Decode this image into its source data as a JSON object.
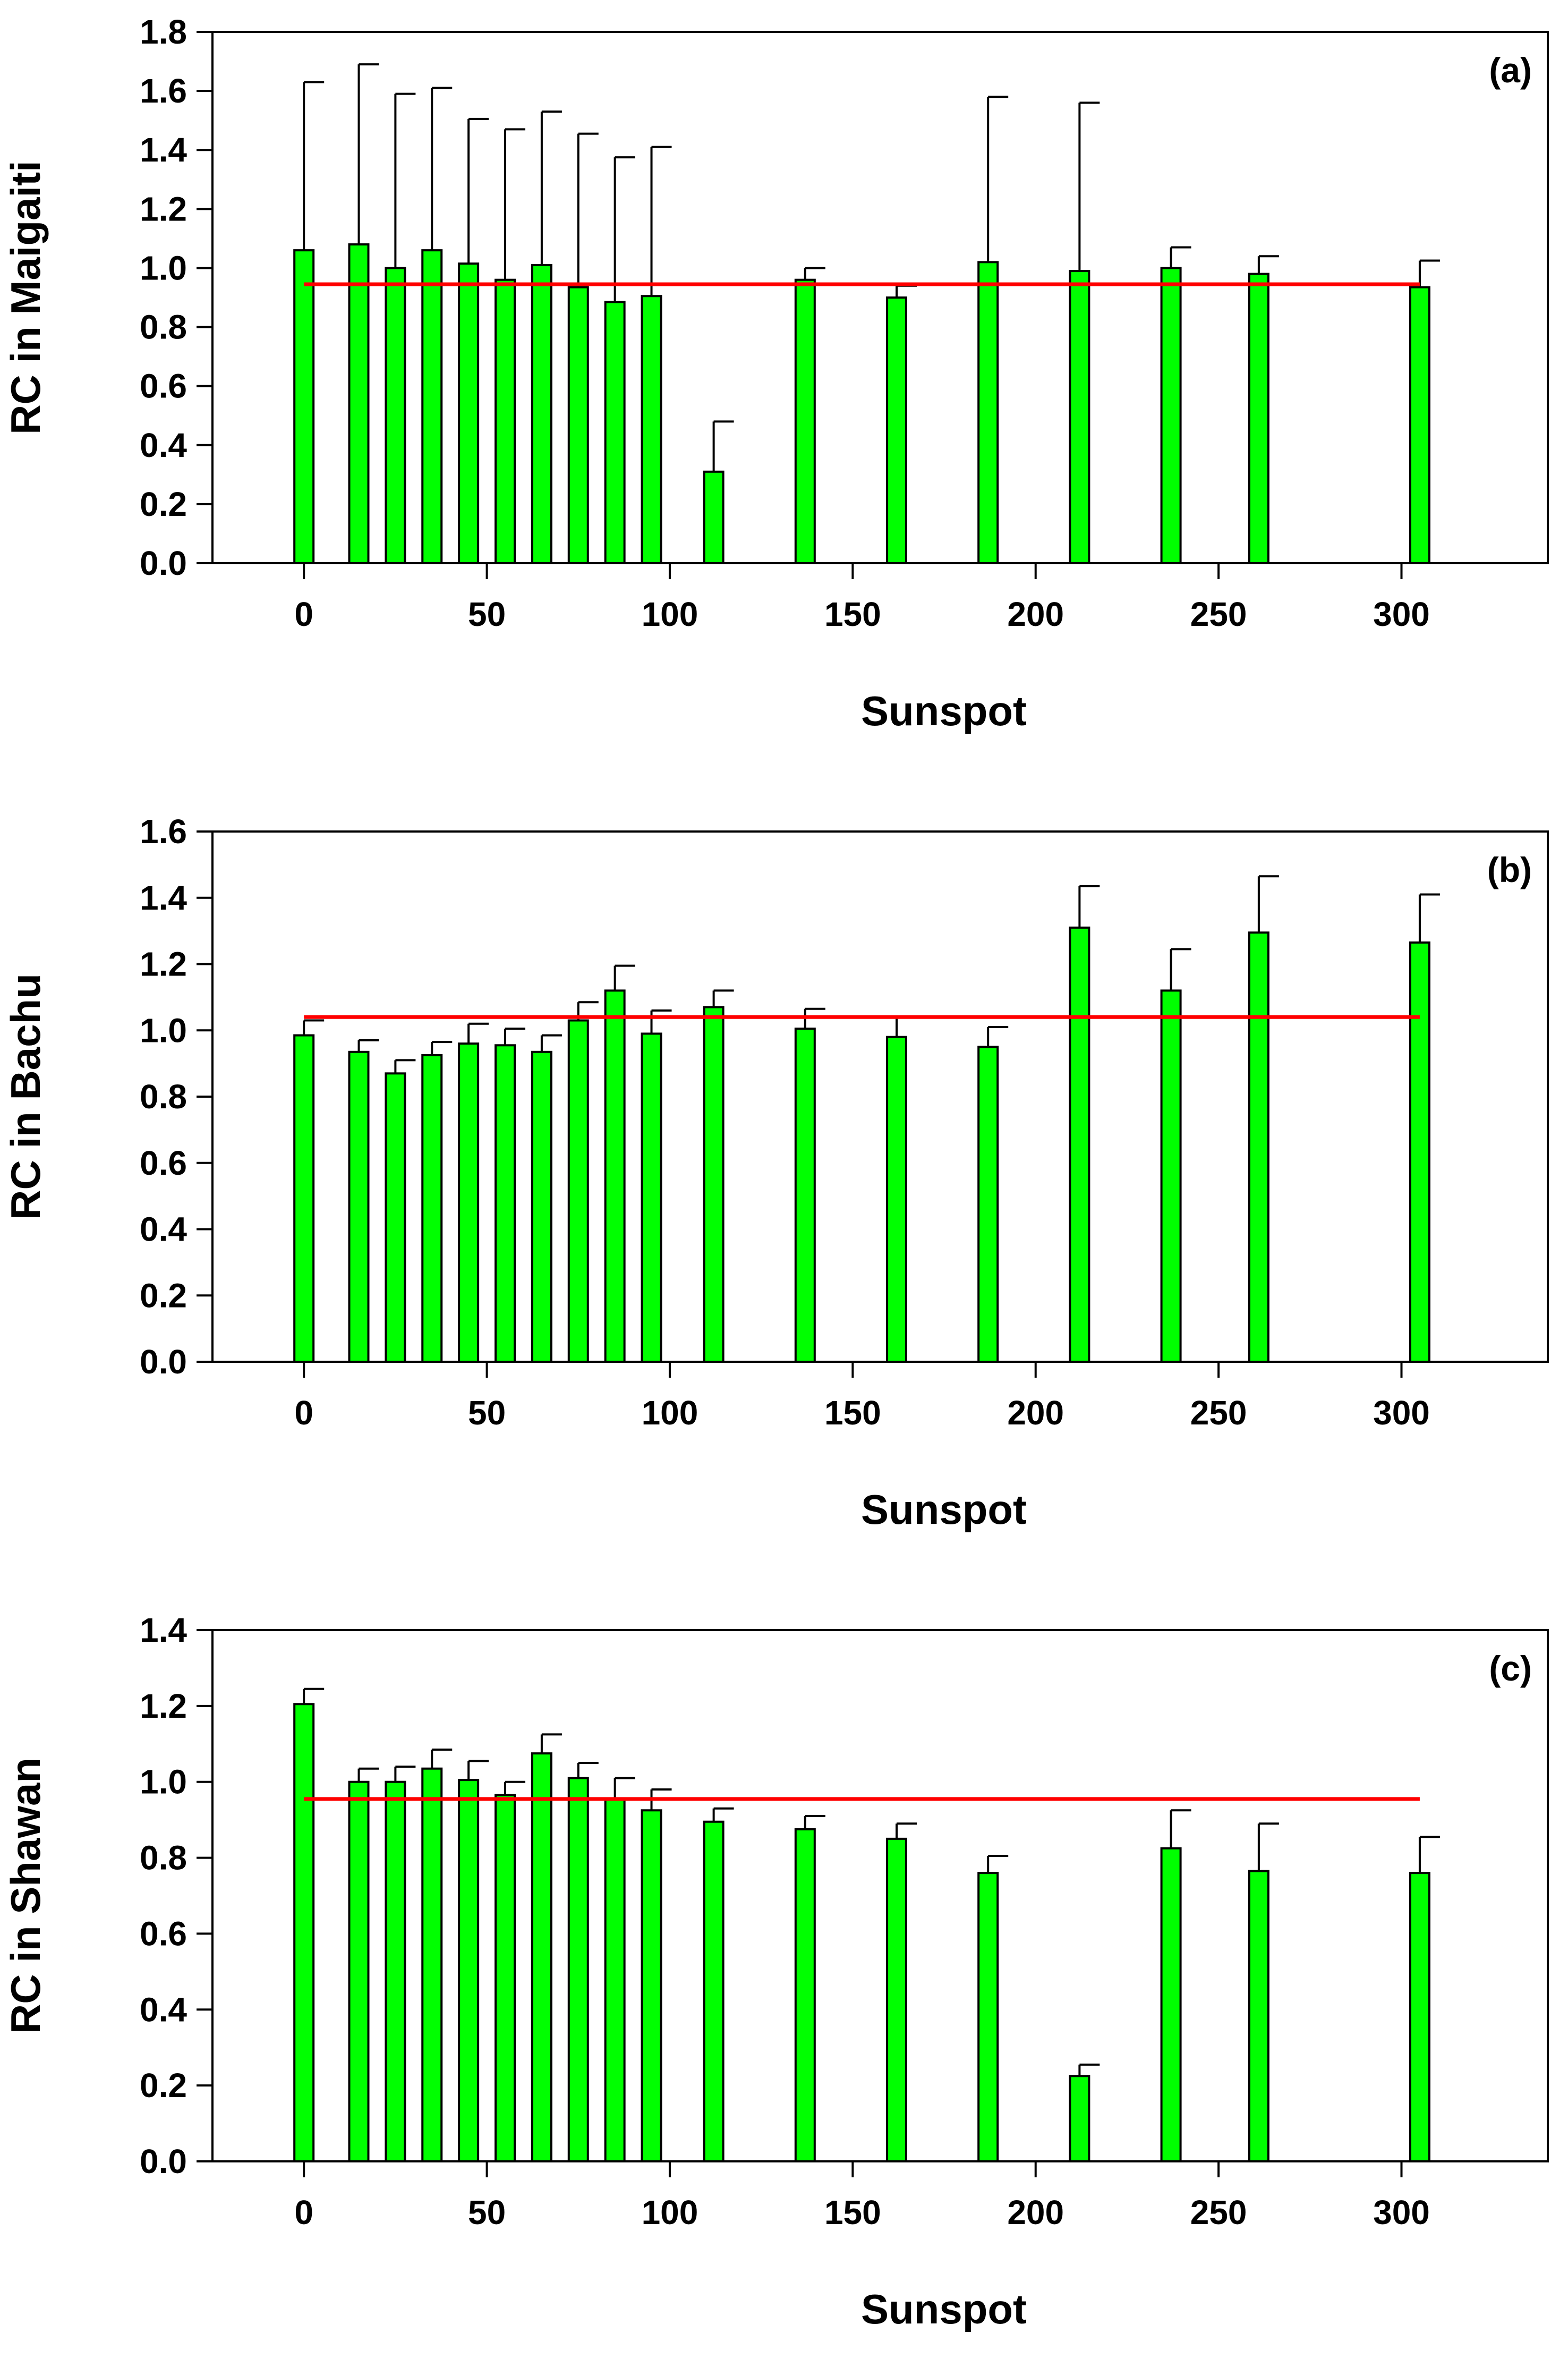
{
  "chart_data": [
    {
      "type": "bar",
      "panel_label": "(a)",
      "xlabel": "Sunspot",
      "ylabel": "RC in Maigaiti",
      "xlim": [
        -25,
        340
      ],
      "ylim": [
        0,
        1.8
      ],
      "x_ticks": [
        0,
        50,
        100,
        150,
        200,
        250,
        300
      ],
      "x_tick_labels": [
        "0",
        "50",
        "100",
        "150",
        "200",
        "250",
        "300"
      ],
      "y_ticks": [
        0,
        0.2,
        0.4,
        0.6,
        0.8,
        1.0,
        1.2,
        1.4,
        1.6,
        1.8
      ],
      "y_tick_labels": [
        "0.0",
        "0.2",
        "0.4",
        "0.6",
        "0.8",
        "1.0",
        "1.2",
        "1.4",
        "1.6",
        "1.8"
      ],
      "bar_color": "#00ff00",
      "reference_line": {
        "value": 0.945,
        "x_from": 0,
        "x_to": 305,
        "color": "#ff0000"
      },
      "x": [
        0,
        15,
        25,
        35,
        45,
        55,
        65,
        75,
        85,
        95,
        112,
        137,
        162,
        187,
        212,
        237,
        261,
        305
      ],
      "values": [
        1.06,
        1.08,
        1.0,
        1.06,
        1.015,
        0.96,
        1.01,
        0.935,
        0.885,
        0.905,
        0.31,
        0.96,
        0.9,
        1.02,
        0.99,
        1.0,
        0.98,
        0.935
      ],
      "errors": [
        0.57,
        0.61,
        0.59,
        0.55,
        0.49,
        0.51,
        0.52,
        0.52,
        0.49,
        0.505,
        0.17,
        0.04,
        0.04,
        0.56,
        0.57,
        0.07,
        0.06,
        0.09
      ]
    },
    {
      "type": "bar",
      "panel_label": "(b)",
      "xlabel": "Sunspot",
      "ylabel": "RC in Bachu",
      "xlim": [
        -25,
        340
      ],
      "ylim": [
        0,
        1.6
      ],
      "x_ticks": [
        0,
        50,
        100,
        150,
        200,
        250,
        300
      ],
      "x_tick_labels": [
        "0",
        "50",
        "100",
        "150",
        "200",
        "250",
        "300"
      ],
      "y_ticks": [
        0,
        0.2,
        0.4,
        0.6,
        0.8,
        1.0,
        1.2,
        1.4,
        1.6
      ],
      "y_tick_labels": [
        "0.0",
        "0.2",
        "0.4",
        "0.6",
        "0.8",
        "1.0",
        "1.2",
        "1.4",
        "1.6"
      ],
      "bar_color": "#00ff00",
      "reference_line": {
        "value": 1.04,
        "x_from": 0,
        "x_to": 305,
        "color": "#ff0000"
      },
      "x": [
        0,
        15,
        25,
        35,
        45,
        55,
        65,
        75,
        85,
        95,
        112,
        137,
        162,
        187,
        212,
        237,
        261,
        305
      ],
      "values": [
        0.985,
        0.935,
        0.87,
        0.925,
        0.96,
        0.955,
        0.935,
        1.03,
        1.12,
        0.99,
        1.07,
        1.005,
        0.98,
        0.95,
        1.31,
        1.12,
        1.295,
        1.265
      ],
      "errors": [
        0.045,
        0.035,
        0.04,
        0.04,
        0.06,
        0.05,
        0.05,
        0.055,
        0.075,
        0.07,
        0.05,
        0.06,
        0.06,
        0.06,
        0.125,
        0.125,
        0.17,
        0.145
      ]
    },
    {
      "type": "bar",
      "panel_label": "(c)",
      "xlabel": "Sunspot",
      "ylabel": "RC in Shawan",
      "xlim": [
        -25,
        340
      ],
      "ylim": [
        0,
        1.4
      ],
      "x_ticks": [
        0,
        50,
        100,
        150,
        200,
        250,
        300
      ],
      "x_tick_labels": [
        "0",
        "50",
        "100",
        "150",
        "200",
        "250",
        "300"
      ],
      "y_ticks": [
        0,
        0.2,
        0.4,
        0.6,
        0.8,
        1.0,
        1.2,
        1.4
      ],
      "y_tick_labels": [
        "0.0",
        "0.2",
        "0.4",
        "0.6",
        "0.8",
        "1.0",
        "1.2",
        "1.4"
      ],
      "bar_color": "#00ff00",
      "reference_line": {
        "value": 0.955,
        "x_from": 0,
        "x_to": 305,
        "color": "#ff0000"
      },
      "x": [
        0,
        15,
        25,
        35,
        45,
        55,
        65,
        75,
        85,
        95,
        112,
        137,
        162,
        187,
        212,
        237,
        261,
        305
      ],
      "values": [
        1.205,
        1.0,
        1.0,
        1.035,
        1.005,
        0.965,
        1.075,
        1.01,
        0.955,
        0.925,
        0.895,
        0.875,
        0.85,
        0.76,
        0.225,
        0.825,
        0.765,
        0.76
      ],
      "errors": [
        0.04,
        0.035,
        0.04,
        0.05,
        0.05,
        0.035,
        0.05,
        0.04,
        0.055,
        0.055,
        0.035,
        0.035,
        0.04,
        0.045,
        0.03,
        0.1,
        0.125,
        0.095
      ]
    }
  ]
}
